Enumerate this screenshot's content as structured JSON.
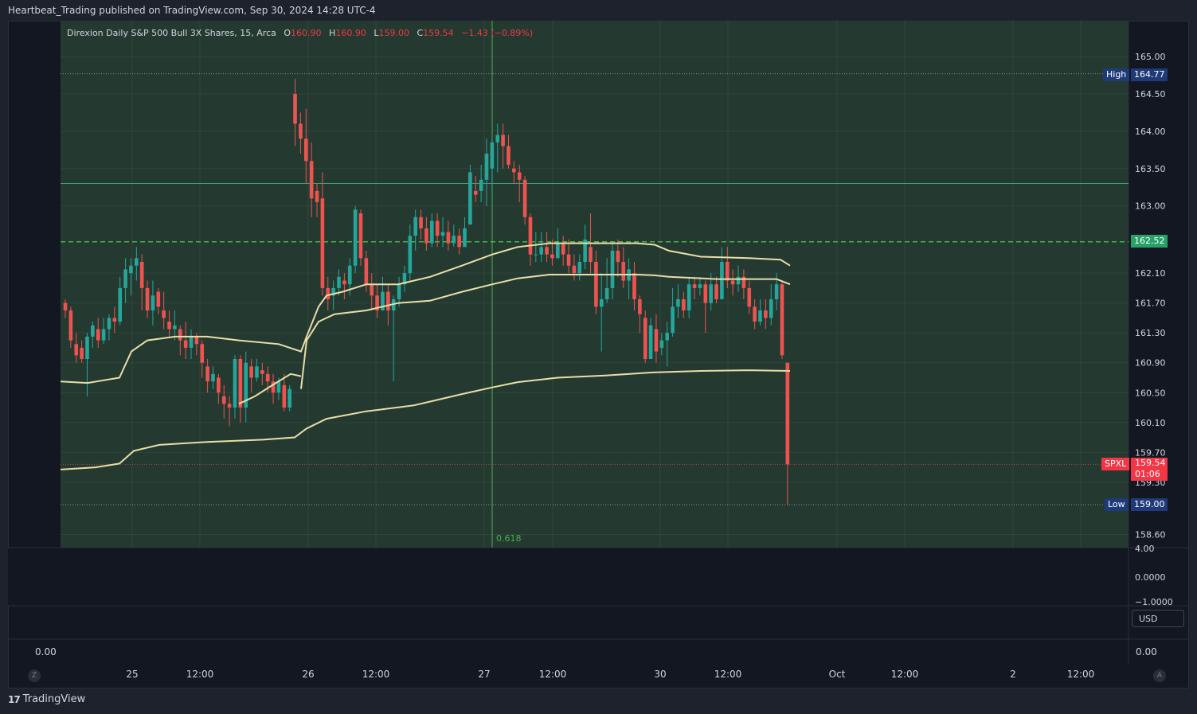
{
  "header": {
    "published_line": "Heartbeat_Trading published on TradingView.com, Sep 30, 2024 14:28 UTC-4"
  },
  "legend": {
    "symbol": "Direxion Daily S&P 500 Bull 3X Shares, 15, Arca",
    "o_key": "O",
    "o_val": "160.90",
    "h_key": "H",
    "h_val": "160.90",
    "l_key": "L",
    "l_val": "159.00",
    "c_key": "C",
    "c_val": "159.54",
    "change": "−1.43 (−0.89%)"
  },
  "price_axis": {
    "labels": [
      "165.00",
      "164.50",
      "164.00",
      "163.50",
      "163.00",
      "162.10",
      "161.70",
      "161.30",
      "160.90",
      "160.50",
      "160.10",
      "159.70",
      "159.30",
      "158.60"
    ],
    "values": [
      165.0,
      164.5,
      164.0,
      163.5,
      163.0,
      162.1,
      161.7,
      161.3,
      160.9,
      160.5,
      160.1,
      159.7,
      159.3,
      158.6
    ]
  },
  "indicator_axis": {
    "labels": [
      "4.00",
      "0.0000",
      "−1.0000"
    ]
  },
  "time_axis": {
    "labels": [
      "25",
      "12:00",
      "26",
      "12:00",
      "27",
      "12:00",
      "30",
      "12:00",
      "Oct",
      "12:00",
      "2",
      "12:00"
    ]
  },
  "tags": {
    "high_label": "High",
    "high_value": "164.77",
    "level_value": "162.52",
    "ticker": "SPXL",
    "last_value": "159.54",
    "countdown": "01:06",
    "low_label": "Low",
    "low_value": "159.00"
  },
  "fib_label": "0.618",
  "currency": "USD",
  "zero_left": "0.00",
  "zero_right": "0.00",
  "nav": {
    "left": "Z",
    "right": "A"
  },
  "brand": "TradingView",
  "colors": {
    "up": "#26a69a",
    "down": "#ef5350",
    "bg_zone": "#243a31",
    "vwap": "#e8dfa8",
    "high_tag": "#1e3a78",
    "last_tag": "#f23645",
    "level_tag": "#26a269"
  },
  "chart_data": {
    "type": "candlestick",
    "timeframe": "15",
    "symbol": "SPXL",
    "last_price": 159.54,
    "session_high": 164.77,
    "session_low": 159.0,
    "levels": [
      162.52,
      163.3
    ],
    "candles": [
      [
        161.7,
        161.6,
        161.75,
        161.5
      ],
      [
        161.6,
        161.2,
        161.65,
        161.1
      ],
      [
        161.15,
        161.0,
        161.3,
        160.9
      ],
      [
        161.1,
        160.95,
        161.2,
        160.9
      ],
      [
        160.95,
        161.25,
        161.3,
        160.45
      ],
      [
        161.25,
        161.4,
        161.45,
        161.1
      ],
      [
        161.35,
        161.2,
        161.5,
        161.1
      ],
      [
        161.2,
        161.35,
        161.5,
        161.15
      ],
      [
        161.35,
        161.5,
        161.55,
        161.2
      ],
      [
        161.5,
        161.45,
        161.65,
        161.3
      ],
      [
        161.45,
        161.9,
        162.05,
        161.4
      ],
      [
        161.9,
        162.15,
        162.3,
        161.7
      ],
      [
        162.1,
        162.2,
        162.3,
        161.8
      ],
      [
        162.2,
        162.3,
        162.45,
        162.0
      ],
      [
        162.25,
        161.9,
        162.35,
        161.6
      ],
      [
        161.9,
        161.6,
        162.0,
        161.5
      ],
      [
        161.6,
        161.8,
        162.0,
        161.4
      ],
      [
        161.85,
        161.65,
        161.9,
        161.55
      ],
      [
        161.6,
        161.5,
        161.85,
        161.35
      ],
      [
        161.45,
        161.35,
        161.6,
        161.25
      ],
      [
        161.35,
        161.4,
        161.6,
        161.2
      ],
      [
        161.35,
        161.2,
        161.4,
        161.0
      ],
      [
        161.2,
        161.1,
        161.45,
        160.95
      ],
      [
        161.1,
        161.25,
        161.35,
        160.95
      ],
      [
        161.25,
        161.15,
        161.3,
        161.0
      ],
      [
        161.15,
        160.9,
        161.2,
        160.7
      ],
      [
        160.85,
        160.65,
        160.95,
        160.5
      ],
      [
        160.65,
        160.75,
        160.85,
        160.55
      ],
      [
        160.7,
        160.5,
        160.75,
        160.35
      ],
      [
        160.45,
        160.35,
        160.6,
        160.15
      ],
      [
        160.35,
        160.3,
        160.45,
        160.05
      ],
      [
        160.3,
        160.95,
        161.0,
        160.15
      ],
      [
        160.95,
        160.3,
        161.0,
        160.1
      ],
      [
        160.3,
        160.9,
        161.05,
        160.1
      ],
      [
        160.85,
        160.7,
        160.95,
        160.5
      ],
      [
        160.7,
        160.85,
        160.95,
        160.65
      ],
      [
        160.8,
        160.75,
        160.9,
        160.6
      ],
      [
        160.75,
        160.65,
        160.85,
        160.5
      ],
      [
        160.65,
        160.5,
        160.75,
        160.35
      ],
      [
        160.5,
        160.65,
        160.7,
        160.4
      ],
      [
        160.6,
        160.3,
        160.75,
        160.25
      ],
      [
        160.3,
        160.55,
        160.6,
        160.25
      ],
      [
        164.5,
        164.1,
        164.7,
        163.8
      ],
      [
        164.1,
        163.9,
        164.25,
        163.7
      ],
      [
        163.9,
        163.6,
        164.3,
        163.3
      ],
      [
        163.6,
        163.1,
        163.85,
        162.85
      ],
      [
        163.2,
        163.05,
        163.3,
        162.85
      ],
      [
        163.1,
        161.9,
        163.45,
        161.8
      ],
      [
        161.9,
        161.75,
        162.05,
        161.6
      ],
      [
        161.8,
        161.9,
        162.0,
        161.6
      ],
      [
        161.9,
        162.05,
        162.15,
        161.8
      ],
      [
        162.0,
        161.95,
        162.1,
        161.75
      ],
      [
        161.95,
        162.2,
        162.3,
        161.8
      ],
      [
        162.2,
        162.95,
        163.0,
        162.1
      ],
      [
        162.9,
        162.3,
        162.95,
        162.2
      ],
      [
        162.3,
        161.95,
        162.4,
        161.85
      ],
      [
        161.95,
        161.8,
        162.1,
        161.6
      ],
      [
        161.8,
        161.6,
        161.95,
        161.5
      ],
      [
        161.6,
        161.85,
        162.05,
        161.65
      ],
      [
        161.85,
        161.6,
        161.95,
        161.4
      ],
      [
        161.6,
        161.75,
        161.8,
        160.65
      ],
      [
        161.75,
        161.95,
        162.05,
        161.65
      ],
      [
        161.95,
        162.1,
        162.2,
        161.85
      ],
      [
        162.1,
        162.6,
        162.75,
        162.0
      ],
      [
        162.6,
        162.85,
        162.95,
        162.4
      ],
      [
        162.85,
        162.7,
        162.95,
        162.55
      ],
      [
        162.7,
        162.5,
        162.85,
        162.4
      ],
      [
        162.5,
        162.8,
        162.9,
        162.45
      ],
      [
        162.8,
        162.6,
        162.9,
        162.45
      ],
      [
        162.6,
        162.65,
        162.85,
        162.45
      ],
      [
        162.65,
        162.5,
        162.8,
        162.4
      ],
      [
        162.5,
        162.6,
        162.75,
        162.45
      ],
      [
        162.6,
        162.45,
        162.7,
        162.35
      ],
      [
        162.45,
        162.7,
        162.85,
        162.55
      ],
      [
        162.75,
        163.45,
        163.55,
        162.85
      ],
      [
        163.2,
        163.15,
        163.4,
        163.05
      ],
      [
        163.2,
        163.35,
        163.55,
        163.05
      ],
      [
        163.35,
        163.7,
        163.9,
        163.0
      ],
      [
        163.5,
        163.85,
        163.9,
        163.2
      ],
      [
        163.85,
        163.95,
        164.1,
        163.45
      ],
      [
        163.95,
        163.8,
        164.1,
        163.5
      ],
      [
        163.8,
        163.55,
        163.95,
        163.5
      ],
      [
        163.5,
        163.45,
        163.6,
        163.3
      ],
      [
        163.45,
        163.35,
        163.55,
        163.05
      ],
      [
        163.35,
        162.85,
        163.4,
        162.75
      ],
      [
        162.85,
        162.35,
        162.9,
        162.2
      ],
      [
        162.35,
        162.35,
        162.65,
        162.25
      ],
      [
        162.35,
        162.45,
        162.65,
        162.25
      ],
      [
        162.45,
        162.35,
        162.65,
        162.25
      ],
      [
        162.35,
        162.3,
        162.55,
        162.2
      ],
      [
        162.3,
        162.5,
        162.7,
        162.3
      ],
      [
        162.5,
        162.35,
        162.6,
        162.2
      ],
      [
        162.35,
        162.2,
        162.55,
        162.1
      ],
      [
        162.2,
        162.1,
        162.35,
        162.0
      ],
      [
        162.1,
        162.25,
        162.35,
        162.0
      ],
      [
        162.25,
        162.55,
        162.75,
        162.15
      ],
      [
        162.45,
        162.25,
        162.9,
        162.1
      ],
      [
        162.25,
        161.65,
        162.4,
        161.55
      ],
      [
        161.65,
        161.75,
        162.1,
        161.05
      ],
      [
        161.75,
        161.9,
        162.3,
        161.7
      ],
      [
        161.9,
        162.4,
        162.5,
        161.75
      ],
      [
        162.4,
        162.25,
        162.55,
        162.05
      ],
      [
        162.25,
        162.0,
        162.45,
        161.9
      ],
      [
        162.0,
        162.15,
        162.3,
        161.75
      ],
      [
        162.1,
        161.75,
        162.25,
        161.6
      ],
      [
        161.75,
        161.55,
        161.8,
        161.3
      ],
      [
        161.5,
        160.95,
        161.6,
        160.9
      ],
      [
        160.95,
        161.4,
        161.5,
        161.0
      ],
      [
        161.35,
        161.05,
        161.55,
        160.9
      ],
      [
        161.1,
        161.2,
        161.3,
        161.0
      ],
      [
        161.2,
        161.3,
        161.45,
        160.85
      ],
      [
        161.3,
        161.65,
        161.9,
        161.25
      ],
      [
        161.65,
        161.75,
        161.95,
        161.5
      ],
      [
        161.75,
        161.6,
        161.85,
        161.5
      ],
      [
        161.6,
        161.95,
        162.05,
        161.5
      ],
      [
        161.95,
        161.9,
        162.05,
        161.75
      ],
      [
        161.9,
        161.95,
        162.05,
        161.8
      ],
      [
        161.95,
        161.7,
        162.0,
        161.3
      ],
      [
        161.7,
        161.95,
        162.1,
        161.6
      ],
      [
        161.95,
        161.75,
        162.05,
        161.7
      ],
      [
        161.75,
        162.25,
        162.45,
        162.0
      ],
      [
        162.25,
        162.0,
        162.45,
        161.9
      ],
      [
        162.0,
        161.95,
        162.15,
        161.8
      ],
      [
        161.95,
        162.05,
        162.2,
        161.85
      ],
      [
        162.05,
        161.9,
        162.15,
        161.75
      ],
      [
        161.9,
        161.65,
        162.0,
        161.55
      ],
      [
        161.65,
        161.45,
        161.75,
        161.35
      ],
      [
        161.45,
        161.6,
        161.75,
        161.4
      ],
      [
        161.6,
        161.5,
        161.75,
        161.35
      ],
      [
        161.5,
        161.75,
        161.95,
        161.4
      ],
      [
        161.75,
        161.95,
        162.1,
        161.6
      ],
      [
        161.95,
        161.0,
        162.0,
        160.95
      ],
      [
        160.9,
        159.54,
        160.9,
        159.0
      ]
    ],
    "moving_averages": [
      {
        "name": "upper",
        "anchor_start": 160.62,
        "end": 162.25
      },
      {
        "name": "middle",
        "end": 161.9
      },
      {
        "name": "lower",
        "end": 160.62
      }
    ],
    "ylim": [
      158.5,
      165.3
    ]
  }
}
